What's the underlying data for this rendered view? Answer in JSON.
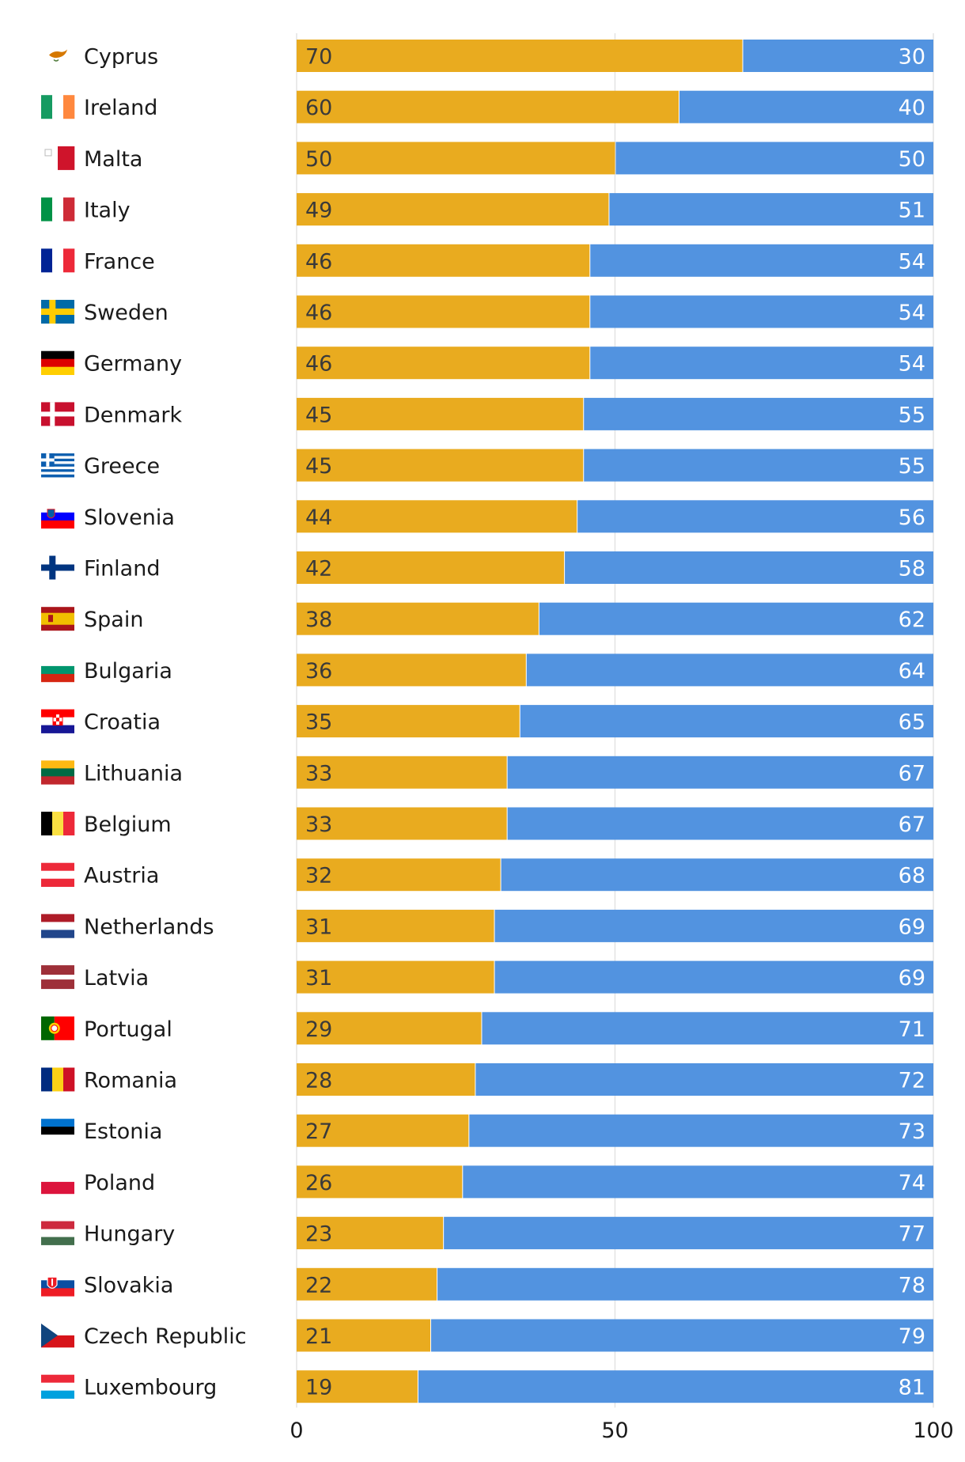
{
  "chart_data": {
    "type": "bar",
    "orientation": "horizontal",
    "stacked": true,
    "xlim": [
      0,
      100
    ],
    "x_ticks": [
      "0",
      "50",
      "100"
    ],
    "grid": true,
    "legend": null,
    "colors": {
      "series_a": "#E9AB1F",
      "series_b": "#5293E0",
      "label_a": "#3a3a3a",
      "label_b": "#ffffff",
      "grid": "#e3e3e3"
    },
    "categories": [
      {
        "name": "Cyprus",
        "flag": "cyprus-flag-icon",
        "a": 70,
        "b": 30
      },
      {
        "name": "Ireland",
        "flag": "ireland-flag-icon",
        "a": 60,
        "b": 40
      },
      {
        "name": "Malta",
        "flag": "malta-flag-icon",
        "a": 50,
        "b": 50
      },
      {
        "name": "Italy",
        "flag": "italy-flag-icon",
        "a": 49,
        "b": 51
      },
      {
        "name": "France",
        "flag": "france-flag-icon",
        "a": 46,
        "b": 54
      },
      {
        "name": "Sweden",
        "flag": "sweden-flag-icon",
        "a": 46,
        "b": 54
      },
      {
        "name": "Germany",
        "flag": "germany-flag-icon",
        "a": 46,
        "b": 54
      },
      {
        "name": "Denmark",
        "flag": "denmark-flag-icon",
        "a": 45,
        "b": 55
      },
      {
        "name": "Greece",
        "flag": "greece-flag-icon",
        "a": 45,
        "b": 55
      },
      {
        "name": "Slovenia",
        "flag": "slovenia-flag-icon",
        "a": 44,
        "b": 56
      },
      {
        "name": "Finland",
        "flag": "finland-flag-icon",
        "a": 42,
        "b": 58
      },
      {
        "name": "Spain",
        "flag": "spain-flag-icon",
        "a": 38,
        "b": 62
      },
      {
        "name": "Bulgaria",
        "flag": "bulgaria-flag-icon",
        "a": 36,
        "b": 64
      },
      {
        "name": "Croatia",
        "flag": "croatia-flag-icon",
        "a": 35,
        "b": 65
      },
      {
        "name": "Lithuania",
        "flag": "lithuania-flag-icon",
        "a": 33,
        "b": 67
      },
      {
        "name": "Belgium",
        "flag": "belgium-flag-icon",
        "a": 33,
        "b": 67
      },
      {
        "name": "Austria",
        "flag": "austria-flag-icon",
        "a": 32,
        "b": 68
      },
      {
        "name": "Netherlands",
        "flag": "netherlands-flag-icon",
        "a": 31,
        "b": 69
      },
      {
        "name": "Latvia",
        "flag": "latvia-flag-icon",
        "a": 31,
        "b": 69
      },
      {
        "name": "Portugal",
        "flag": "portugal-flag-icon",
        "a": 29,
        "b": 71
      },
      {
        "name": "Romania",
        "flag": "romania-flag-icon",
        "a": 28,
        "b": 72
      },
      {
        "name": "Estonia",
        "flag": "estonia-flag-icon",
        "a": 27,
        "b": 73
      },
      {
        "name": "Poland",
        "flag": "poland-flag-icon",
        "a": 26,
        "b": 74
      },
      {
        "name": "Hungary",
        "flag": "hungary-flag-icon",
        "a": 23,
        "b": 77
      },
      {
        "name": "Slovakia",
        "flag": "slovakia-flag-icon",
        "a": 22,
        "b": 78
      },
      {
        "name": "Czech Republic",
        "flag": "czech-republic-flag-icon",
        "a": 21,
        "b": 79
      },
      {
        "name": "Luxembourg",
        "flag": "luxembourg-flag-icon",
        "a": 19,
        "b": 81
      }
    ]
  }
}
